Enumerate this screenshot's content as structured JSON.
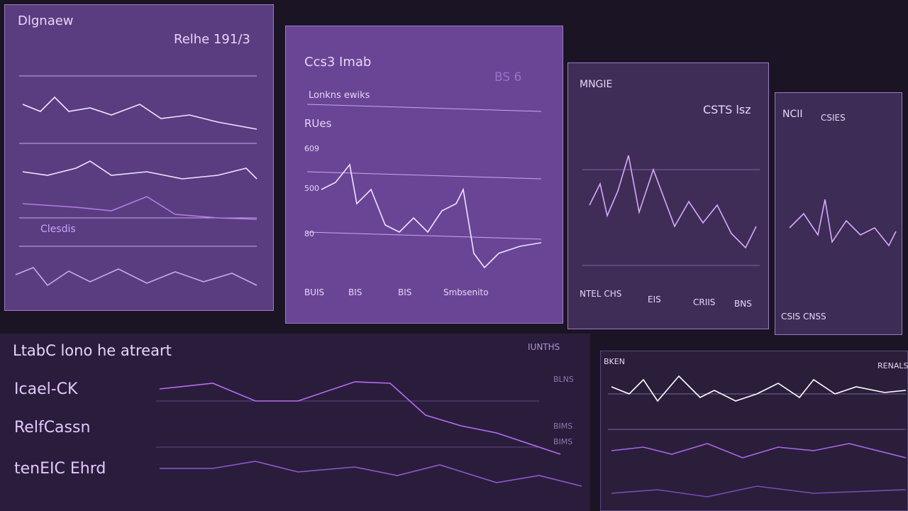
{
  "panels": [
    {
      "title": "Dlgnaew",
      "subtitle": "Relhe 191/3",
      "label": "Clesdis"
    },
    {
      "title": "Ccs3 Imab",
      "subtitle": "Lonkns ewiks",
      "label": "RUes",
      "axis": [
        "609",
        "500",
        "80"
      ],
      "footer": [
        "BUIS",
        "BIS",
        "BIS",
        "Smbsenito"
      ],
      "corner": "BS 6"
    },
    {
      "title": "MNGIE",
      "subtitle": "CSTS lsz",
      "footer": [
        "NTEL CHS",
        "EIS",
        "CRIIS",
        "BNS"
      ]
    },
    {
      "title": "NCII",
      "subtitle": "CSIES",
      "footer": [
        "CSIS CNSS"
      ]
    }
  ],
  "bottom": {
    "title": "LtabC lono he atreart",
    "tag": "IUNTHS",
    "rows": [
      "Icael-CK",
      "RelfCassn",
      "tenEIC Ehrd"
    ],
    "side": [
      "BLNS",
      "BIMS",
      "BIMS"
    ]
  },
  "right": {
    "title": "BKEN",
    "tag": "RENALS"
  }
}
